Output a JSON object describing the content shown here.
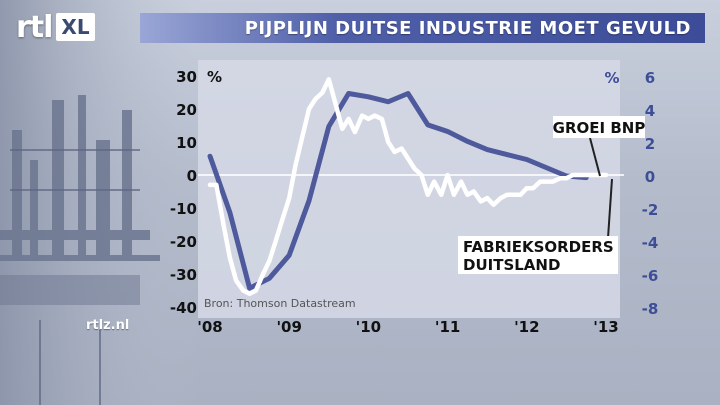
{
  "header": {
    "logo_rtl": "rtl",
    "logo_xl": "XL",
    "title": "PIJPLIJN DUITSE INDUSTRIE MOET GEVULD"
  },
  "footer": {
    "site": "rtlz.nl"
  },
  "colors": {
    "accent": "#3d4e97",
    "series_orders": "#ffffff",
    "series_bnp": "#4e5a9c",
    "plot_bg": "#d6d9e6"
  },
  "chart_data": {
    "type": "line",
    "title": "PIJPLIJN DUITSE INDUSTRIE MOET GEVULD",
    "source": "Bron: Thomson Datastream",
    "x_tick_labels": [
      "'08",
      "'09",
      "'10",
      "'11",
      "'12",
      "'13"
    ],
    "x_range": [
      2008.0,
      2013.0
    ],
    "y_left": {
      "unit": "%",
      "range": [
        -40,
        30
      ],
      "ticks": [
        "30",
        "20",
        "10",
        "0",
        "-10",
        "-20",
        "-30",
        "-40"
      ]
    },
    "y_right": {
      "unit": "%",
      "range": [
        -8,
        6
      ],
      "ticks": [
        "6",
        "4",
        "2",
        "0",
        "-2",
        "-4",
        "-6",
        "-8"
      ]
    },
    "grid": false,
    "series": [
      {
        "name": "FABRIEKSORDERS DUITSLAND",
        "axis": "left",
        "x": [
          2008.0,
          2008.08,
          2008.17,
          2008.25,
          2008.33,
          2008.42,
          2008.5,
          2008.58,
          2008.67,
          2008.75,
          2008.83,
          2008.92,
          2009.0,
          2009.08,
          2009.17,
          2009.25,
          2009.33,
          2009.42,
          2009.5,
          2009.58,
          2009.67,
          2009.75,
          2009.83,
          2009.92,
          2010.0,
          2010.08,
          2010.17,
          2010.25,
          2010.33,
          2010.42,
          2010.5,
          2010.58,
          2010.67,
          2010.75,
          2010.83,
          2010.92,
          2011.0,
          2011.08,
          2011.17,
          2011.25,
          2011.33,
          2011.42,
          2011.5,
          2011.58,
          2011.67,
          2011.75,
          2011.83,
          2011.92,
          2012.0,
          2012.08,
          2012.17,
          2012.25,
          2012.33,
          2012.42,
          2012.5,
          2012.58,
          2012.67,
          2012.75,
          2012.83,
          2012.92,
          2013.0
        ],
        "values": [
          -3,
          -3,
          -15,
          -25,
          -32,
          -35,
          -36,
          -35,
          -30,
          -26,
          -20,
          -13,
          -7,
          3,
          12,
          20,
          23,
          25,
          29,
          22,
          14,
          17,
          13,
          18,
          17,
          18,
          17,
          10,
          7,
          8,
          5,
          2,
          0,
          -6,
          -2,
          -6,
          0,
          -6,
          -2,
          -6,
          -5,
          -8,
          -7,
          -9,
          -7,
          -6,
          -6,
          -6,
          -4,
          -4,
          -2,
          -2,
          -2,
          -1,
          -1,
          0,
          0,
          0,
          0,
          0,
          0
        ]
      },
      {
        "name": "GROEI BNP",
        "axis": "right",
        "x": [
          2008.0,
          2008.25,
          2008.5,
          2008.75,
          2009.0,
          2009.25,
          2009.5,
          2009.75,
          2010.0,
          2010.25,
          2010.5,
          2010.75,
          2011.0,
          2011.25,
          2011.5,
          2011.75,
          2012.0,
          2012.25,
          2012.5,
          2012.75
        ],
        "values": [
          1.2,
          -2.2,
          -6.8,
          -6.2,
          -4.8,
          -1.5,
          3.0,
          5.0,
          4.8,
          4.5,
          5.0,
          3.1,
          2.7,
          2.1,
          1.6,
          1.3,
          1.0,
          0.5,
          0.0,
          -0.1
        ]
      }
    ]
  }
}
